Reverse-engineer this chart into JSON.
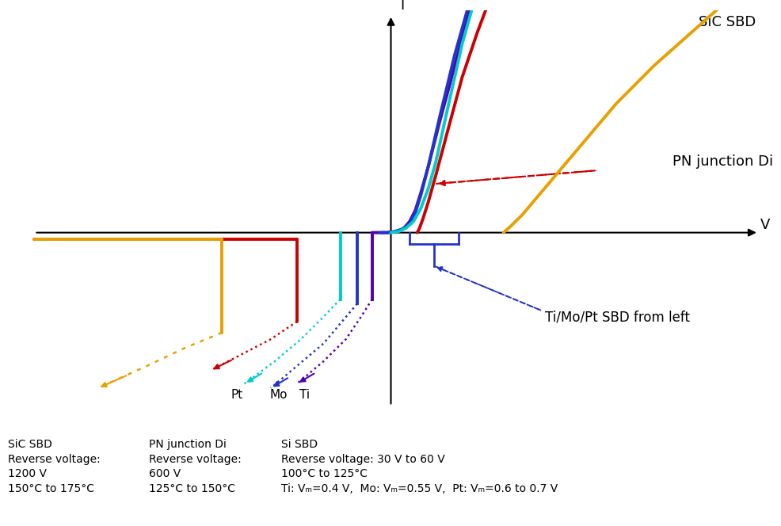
{
  "background_color": "#ffffff",
  "sic_color": "#E8A000",
  "pn_color": "#CC0000",
  "pt_color": "#00CCCC",
  "mo_color": "#2233CC",
  "ti_color": "#5500AA",
  "brace_color": "#2233CC",
  "xlim": [
    -10,
    10
  ],
  "ylim": [
    -8,
    10
  ],
  "bottom_text_col1": "SiC SBD\nReverse voltage:\n1200 V\n150°C to 175°C",
  "bottom_text_col2": "PN junction Di\nReverse voltage:\n600 V\n125°C to 150°C",
  "bottom_text_col3": "Si SBD\nReverse voltage: 30 V to 60 V\n100°C to 125°C\nTi: Vₘ=0.4 V,  Mo: Vₘ=0.55 V,  Pt: Vₘ=0.6 to 0.7 V"
}
